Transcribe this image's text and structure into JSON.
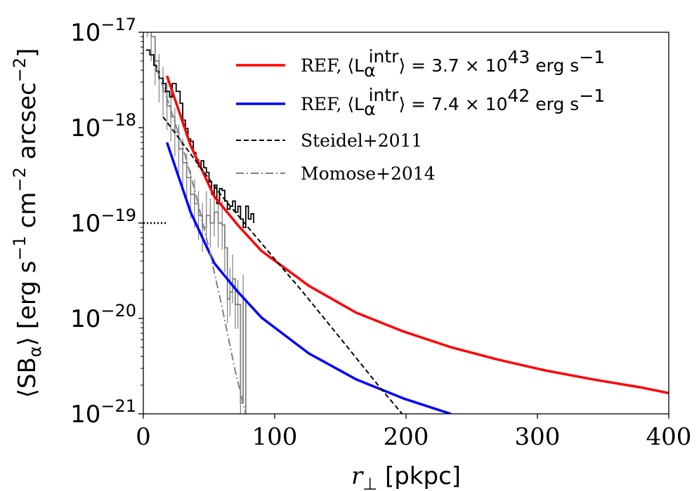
{
  "chart_data": {
    "type": "line",
    "xlabel_italic": "r",
    "xlabel_sub": "⊥",
    "xlabel_unit": "[pkpc]",
    "ylabel_text": "⟨SB",
    "ylabel_sub": "α",
    "ylabel_rest": "⟩ [erg s",
    "ylabel_sup1": "−1",
    "ylabel_mid": " cm",
    "ylabel_sup2": "−2",
    "ylabel_mid2": " arcsec",
    "ylabel_sup3": "−2",
    "ylabel_end": "]",
    "xlim": [
      0,
      400
    ],
    "ylim": [
      1e-21,
      1e-17
    ],
    "yscale": "log",
    "xticks": [
      {
        "value": 0,
        "label": "0"
      },
      {
        "value": 100,
        "label": "100"
      },
      {
        "value": 200,
        "label": "200"
      },
      {
        "value": 300,
        "label": "300"
      },
      {
        "value": 400,
        "label": "400"
      }
    ],
    "yticks": [
      {
        "value": 1e-21,
        "base": "10",
        "exp": "−21"
      },
      {
        "value": 1e-20,
        "base": "10",
        "exp": "−20"
      },
      {
        "value": 1e-19,
        "base": "10",
        "exp": "−19"
      },
      {
        "value": 1e-18,
        "base": "10",
        "exp": "−18"
      },
      {
        "value": 1e-17,
        "base": "10",
        "exp": "−17"
      }
    ],
    "legend_position": "upper-right",
    "series": [
      {
        "key": "ref_bright",
        "legend_prefix": "REF, ",
        "legend_math": "⟨L",
        "legend_sub": "α",
        "legend_sup": "intr",
        "legend_value": "⟩ = 3.7 × 10",
        "legend_value_sup": "43",
        "legend_unit": " erg s",
        "legend_unit_sup": "−1",
        "color": "#ff0000",
        "style": "solid",
        "x": [
          18,
          36,
          54,
          72,
          90,
          126,
          162,
          198,
          234,
          270,
          306,
          342,
          378,
          400
        ],
        "y": [
          3.5e-18,
          6.5e-19,
          1.9e-19,
          9.5e-20,
          5.1e-20,
          2.2e-20,
          1.15e-20,
          7.3e-21,
          5e-21,
          3.7e-21,
          2.85e-21,
          2.3e-21,
          1.9e-21,
          1.65e-21
        ]
      },
      {
        "key": "ref_faint",
        "legend_prefix": "REF, ",
        "legend_math": "⟨L",
        "legend_sub": "α",
        "legend_sup": "intr",
        "legend_value": "⟩ = 7.4 × 10",
        "legend_value_sup": "42",
        "legend_unit": " erg s",
        "legend_unit_sup": "−1",
        "color": "#0000ff",
        "style": "solid",
        "x": [
          18,
          36,
          54,
          72,
          90,
          126,
          162,
          198,
          234
        ],
        "y": [
          7e-19,
          1.3e-19,
          3.8e-20,
          1.9e-20,
          1.02e-20,
          4.3e-21,
          2.3e-21,
          1.45e-21,
          1e-21
        ]
      },
      {
        "key": "steidel",
        "legend_label": "Steidel+2011",
        "color": "#000000",
        "style": "dashed",
        "x": [
          15,
          60,
          100,
          120,
          150,
          180,
          197
        ],
        "y": [
          1.3e-18,
          1.9e-19,
          4.2e-20,
          2e-20,
          6.2e-21,
          1.9e-21,
          1e-21
        ]
      },
      {
        "key": "momose",
        "legend_label": "Momose+2014",
        "color": "#808080",
        "style": "dashdot",
        "x": [
          10,
          20,
          30,
          40,
          50,
          60,
          70,
          78
        ],
        "y": [
          4.2e-18,
          1.7e-18,
          6.3e-19,
          2e-19,
          5.4e-20,
          1.3e-20,
          2.8e-21,
          1e-21
        ]
      }
    ],
    "observed_steps_black": {
      "color": "#000000",
      "x": [
        2,
        5,
        8,
        10,
        12,
        15,
        17,
        20,
        22,
        25,
        28,
        30,
        32,
        34,
        36,
        38,
        40,
        42,
        44,
        46,
        48,
        50,
        52,
        54,
        56,
        58,
        60,
        62,
        64,
        66,
        68,
        70,
        72,
        74,
        76,
        78,
        80,
        82,
        84
      ],
      "y": [
        6.5e-18,
        5.8e-18,
        4.5e-18,
        3.9e-18,
        3.3e-18,
        2.9e-18,
        2.4e-18,
        2.1e-18,
        2.9e-18,
        2.4e-18,
        1.8e-18,
        1.2e-18,
        9.8e-19,
        7.6e-19,
        7.2e-19,
        5.5e-19,
        4.6e-19,
        3.9e-19,
        4.5e-19,
        3.8e-19,
        3.4e-19,
        2.7e-19,
        2e-19,
        2.5e-19,
        1.6e-19,
        2.3e-19,
        2.2e-19,
        1.7e-19,
        1.4e-19,
        1.5e-19,
        1.7e-19,
        1.3e-19,
        1.5e-19,
        1.1e-19,
        9e-20,
        1.5e-19,
        1.1e-19,
        1.25e-19,
        1e-19
      ]
    },
    "observed_steps_gray": {
      "color": "#808080",
      "x": [
        3,
        6,
        9,
        12,
        15,
        18,
        21,
        24,
        27,
        30,
        33,
        36,
        39,
        42,
        45,
        48,
        51,
        54,
        57,
        60,
        62,
        64,
        66,
        68,
        70,
        72,
        74,
        76,
        78
      ],
      "y": [
        1.6e-17,
        9e-18,
        5e-18,
        3.3e-18,
        2.4e-18,
        1.7e-18,
        1.3e-18,
        9e-19,
        6e-19,
        4.3e-19,
        3e-19,
        2e-19,
        1.6e-19,
        1.2e-19,
        9e-20,
        1.2e-19,
        1e-19,
        1.3e-19,
        1e-19,
        9.5e-20,
        5.5e-20,
        1.6e-20,
        1.9e-20,
        2.6e-20,
        1.4e-20,
        1.4e-20,
        1.3e-21,
        1.6e-20,
        1e-21
      ]
    },
    "detection_limit": {
      "color": "#000000",
      "style": "dotted",
      "x": [
        0,
        18
      ],
      "y": [
        1e-19,
        1e-19
      ]
    }
  }
}
